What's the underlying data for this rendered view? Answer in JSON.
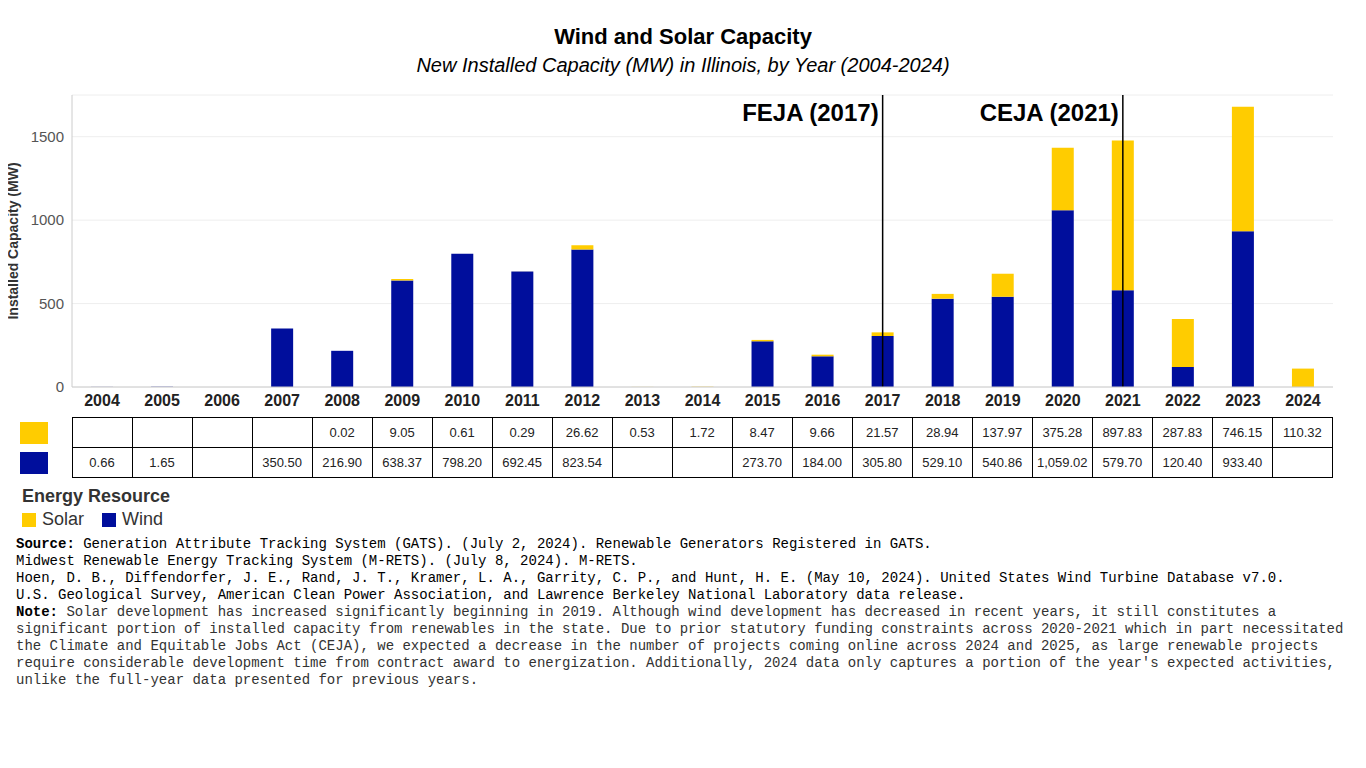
{
  "chart_data": {
    "type": "bar",
    "title": "Wind and Solar Capacity",
    "subtitle": "New Installed Capacity (MW) in Illinois, by Year (2004-2024)",
    "y_label": "Installed Capacity (MW)",
    "categories": [
      "2004",
      "2005",
      "2006",
      "2007",
      "2008",
      "2009",
      "2010",
      "2011",
      "2012",
      "2013",
      "2014",
      "2015",
      "2016",
      "2017",
      "2018",
      "2019",
      "2020",
      "2021",
      "2022",
      "2023",
      "2024"
    ],
    "series": [
      {
        "name": "Solar",
        "color": "#FFCC00",
        "values": [
          null,
          null,
          null,
          null,
          0.02,
          9.05,
          0.61,
          0.29,
          26.62,
          0.53,
          1.72,
          8.47,
          9.66,
          21.57,
          28.94,
          137.97,
          375.28,
          897.83,
          287.83,
          746.15,
          110.32
        ],
        "value_labels": [
          null,
          null,
          null,
          null,
          "0.02",
          "9.05",
          "0.61",
          "0.29",
          "26.62",
          "0.53",
          "1.72",
          "8.47",
          "9.66",
          "21.57",
          "28.94",
          "137.97",
          "375.28",
          "897.83",
          "287.83",
          "746.15",
          "110.32"
        ]
      },
      {
        "name": "Wind",
        "color": "#000E9C",
        "values": [
          0.66,
          1.65,
          null,
          350.5,
          216.9,
          638.37,
          798.2,
          692.45,
          823.54,
          null,
          null,
          273.7,
          184,
          305.8,
          529.1,
          540.86,
          1059.02,
          579.7,
          120.4,
          933.4,
          null
        ],
        "value_labels": [
          "0.66",
          "1.65",
          null,
          "350.50",
          "216.90",
          "638.37",
          "798.20",
          "692.45",
          "823.54",
          null,
          null,
          "273.70",
          "184.00",
          "305.80",
          "529.10",
          "540.86",
          "1,059.02",
          "579.70",
          "120.40",
          "933.40",
          null
        ]
      }
    ],
    "stacked": true,
    "ylim": [
      0,
      1750
    ],
    "yticks": [
      0,
      500,
      1000,
      1500
    ],
    "grid": true,
    "legend": "bottom-left",
    "legend_title": "Energy Resource",
    "annotations": [
      {
        "x": "2017",
        "label": "FEJA (2017)"
      },
      {
        "x": "2021",
        "label": "CEJA (2021)"
      }
    ],
    "source_label": "Source:",
    "sources": [
      "Generation Attribute Tracking System (GATS). (July 2, 2024). Renewable Generators Registered in GATS.",
      "Midwest Renewable Energy Tracking System (M-RETS). (July 8, 2024). M-RETS.",
      "Hoen, D. B., Diffendorfer, J. E., Rand, J. T., Kramer, L. A., Garrity, C. P., and Hunt, H. E. (May 10, 2024). United States Wind Turbine Database v7.0.",
      "U.S. Geological Survey, American Clean Power Association, and Lawrence Berkeley National Laboratory data release."
    ],
    "note_label": "Note:",
    "note": "Solar development has increased significantly beginning in 2019. Although wind development has decreased in recent years, it still constitutes a significant portion of installed capacity from renewables  in the state. Due to prior statutory funding constraints across 2020-2021 which in part necessitated the Climate and Equitable Jobs Act (CEJA), we expected a decrease in the number of projects coming online across 2024 and 2025, as large renewable projects require considerable development time from contract award to energization. Additionally, 2024 data only captures a portion of the year's expected activities, unlike the full-year data presented for previous years."
  }
}
